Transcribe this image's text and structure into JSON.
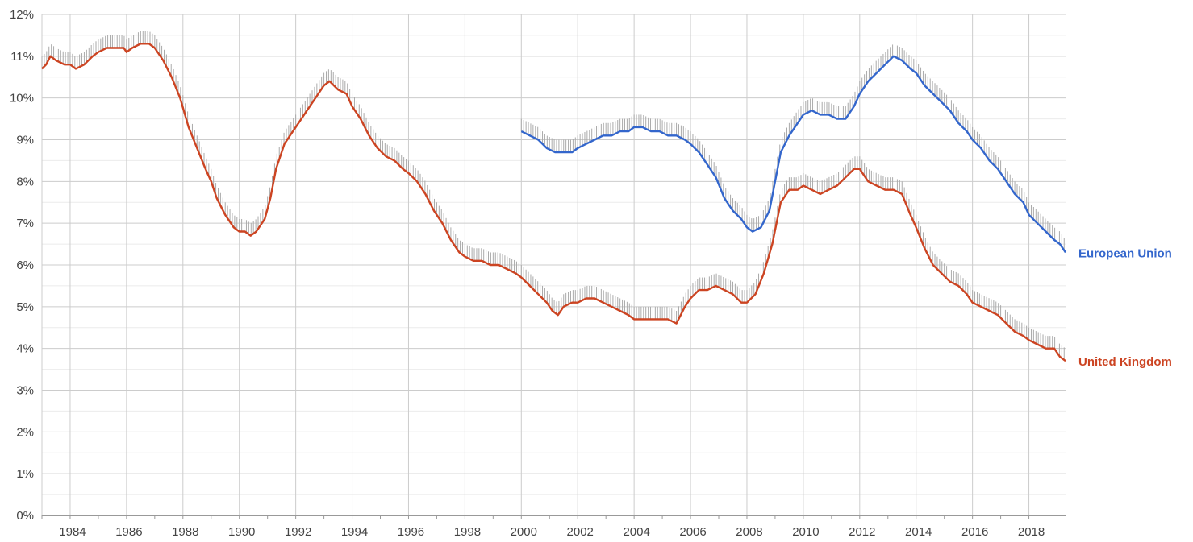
{
  "chart_data": {
    "type": "line",
    "title": "",
    "xlabel": "",
    "ylabel": "",
    "x_range": [
      1983.0,
      2019.3
    ],
    "ylim": [
      0,
      12
    ],
    "y_ticks": [
      "0%",
      "1%",
      "2%",
      "3%",
      "4%",
      "5%",
      "6%",
      "7%",
      "8%",
      "9%",
      "10%",
      "11%",
      "12%"
    ],
    "x_ticks": [
      "1984",
      "1986",
      "1988",
      "1990",
      "1992",
      "1994",
      "1996",
      "1998",
      "2000",
      "2002",
      "2004",
      "2006",
      "2008",
      "2010",
      "2012",
      "2014",
      "2016",
      "2018"
    ],
    "grid": true,
    "legend": "right, end of lines",
    "series": [
      {
        "name": "European Union",
        "color": "#3366cc",
        "points": [
          [
            2000.0,
            9.2
          ],
          [
            2000.3,
            9.1
          ],
          [
            2000.6,
            9.0
          ],
          [
            2000.9,
            8.8
          ],
          [
            2001.2,
            8.7
          ],
          [
            2001.5,
            8.7
          ],
          [
            2001.8,
            8.7
          ],
          [
            2002.0,
            8.8
          ],
          [
            2002.3,
            8.9
          ],
          [
            2002.6,
            9.0
          ],
          [
            2002.9,
            9.1
          ],
          [
            2003.2,
            9.1
          ],
          [
            2003.5,
            9.2
          ],
          [
            2003.8,
            9.2
          ],
          [
            2004.0,
            9.3
          ],
          [
            2004.3,
            9.3
          ],
          [
            2004.6,
            9.2
          ],
          [
            2004.9,
            9.2
          ],
          [
            2005.2,
            9.1
          ],
          [
            2005.5,
            9.1
          ],
          [
            2005.8,
            9.0
          ],
          [
            2006.0,
            8.9
          ],
          [
            2006.3,
            8.7
          ],
          [
            2006.6,
            8.4
          ],
          [
            2006.9,
            8.1
          ],
          [
            2007.2,
            7.6
          ],
          [
            2007.5,
            7.3
          ],
          [
            2007.8,
            7.1
          ],
          [
            2008.0,
            6.9
          ],
          [
            2008.2,
            6.8
          ],
          [
            2008.5,
            6.9
          ],
          [
            2008.8,
            7.3
          ],
          [
            2009.0,
            8.0
          ],
          [
            2009.2,
            8.7
          ],
          [
            2009.5,
            9.1
          ],
          [
            2009.8,
            9.4
          ],
          [
            2010.0,
            9.6
          ],
          [
            2010.3,
            9.7
          ],
          [
            2010.6,
            9.6
          ],
          [
            2010.9,
            9.6
          ],
          [
            2011.2,
            9.5
          ],
          [
            2011.5,
            9.5
          ],
          [
            2011.8,
            9.8
          ],
          [
            2012.0,
            10.1
          ],
          [
            2012.3,
            10.4
          ],
          [
            2012.6,
            10.6
          ],
          [
            2012.9,
            10.8
          ],
          [
            2013.2,
            11.0
          ],
          [
            2013.5,
            10.9
          ],
          [
            2013.8,
            10.7
          ],
          [
            2014.0,
            10.6
          ],
          [
            2014.3,
            10.3
          ],
          [
            2014.6,
            10.1
          ],
          [
            2014.9,
            9.9
          ],
          [
            2015.2,
            9.7
          ],
          [
            2015.5,
            9.4
          ],
          [
            2015.8,
            9.2
          ],
          [
            2016.0,
            9.0
          ],
          [
            2016.3,
            8.8
          ],
          [
            2016.6,
            8.5
          ],
          [
            2016.9,
            8.3
          ],
          [
            2017.2,
            8.0
          ],
          [
            2017.5,
            7.7
          ],
          [
            2017.8,
            7.5
          ],
          [
            2018.0,
            7.2
          ],
          [
            2018.3,
            7.0
          ],
          [
            2018.6,
            6.8
          ],
          [
            2018.9,
            6.6
          ],
          [
            2019.1,
            6.5
          ],
          [
            2019.3,
            6.3
          ]
        ]
      },
      {
        "name": "United Kingdom",
        "color": "#cc4422",
        "points": [
          [
            1983.0,
            10.7
          ],
          [
            1983.15,
            10.8
          ],
          [
            1983.3,
            11.0
          ],
          [
            1983.5,
            10.9
          ],
          [
            1983.8,
            10.8
          ],
          [
            1984.0,
            10.8
          ],
          [
            1984.2,
            10.7
          ],
          [
            1984.5,
            10.8
          ],
          [
            1984.8,
            11.0
          ],
          [
            1985.0,
            11.1
          ],
          [
            1985.3,
            11.2
          ],
          [
            1985.6,
            11.2
          ],
          [
            1985.9,
            11.2
          ],
          [
            1986.0,
            11.1
          ],
          [
            1986.2,
            11.2
          ],
          [
            1986.5,
            11.3
          ],
          [
            1986.8,
            11.3
          ],
          [
            1987.0,
            11.2
          ],
          [
            1987.3,
            10.9
          ],
          [
            1987.6,
            10.5
          ],
          [
            1987.9,
            10.0
          ],
          [
            1988.2,
            9.3
          ],
          [
            1988.5,
            8.8
          ],
          [
            1988.8,
            8.3
          ],
          [
            1989.0,
            8.0
          ],
          [
            1989.2,
            7.6
          ],
          [
            1989.5,
            7.2
          ],
          [
            1989.8,
            6.9
          ],
          [
            1990.0,
            6.8
          ],
          [
            1990.2,
            6.8
          ],
          [
            1990.4,
            6.7
          ],
          [
            1990.6,
            6.8
          ],
          [
            1990.9,
            7.1
          ],
          [
            1991.1,
            7.6
          ],
          [
            1991.3,
            8.3
          ],
          [
            1991.6,
            8.9
          ],
          [
            1991.9,
            9.2
          ],
          [
            1992.1,
            9.4
          ],
          [
            1992.4,
            9.7
          ],
          [
            1992.7,
            10.0
          ],
          [
            1993.0,
            10.3
          ],
          [
            1993.2,
            10.4
          ],
          [
            1993.5,
            10.2
          ],
          [
            1993.8,
            10.1
          ],
          [
            1994.0,
            9.8
          ],
          [
            1994.3,
            9.5
          ],
          [
            1994.6,
            9.1
          ],
          [
            1994.9,
            8.8
          ],
          [
            1995.2,
            8.6
          ],
          [
            1995.5,
            8.5
          ],
          [
            1995.8,
            8.3
          ],
          [
            1996.0,
            8.2
          ],
          [
            1996.3,
            8.0
          ],
          [
            1996.6,
            7.7
          ],
          [
            1996.9,
            7.3
          ],
          [
            1997.2,
            7.0
          ],
          [
            1997.5,
            6.6
          ],
          [
            1997.8,
            6.3
          ],
          [
            1998.0,
            6.2
          ],
          [
            1998.3,
            6.1
          ],
          [
            1998.6,
            6.1
          ],
          [
            1998.9,
            6.0
          ],
          [
            1999.2,
            6.0
          ],
          [
            1999.5,
            5.9
          ],
          [
            1999.8,
            5.8
          ],
          [
            2000.0,
            5.7
          ],
          [
            2000.3,
            5.5
          ],
          [
            2000.6,
            5.3
          ],
          [
            2000.9,
            5.1
          ],
          [
            2001.1,
            4.9
          ],
          [
            2001.3,
            4.8
          ],
          [
            2001.5,
            5.0
          ],
          [
            2001.8,
            5.1
          ],
          [
            2002.0,
            5.1
          ],
          [
            2002.3,
            5.2
          ],
          [
            2002.6,
            5.2
          ],
          [
            2002.9,
            5.1
          ],
          [
            2003.2,
            5.0
          ],
          [
            2003.5,
            4.9
          ],
          [
            2003.8,
            4.8
          ],
          [
            2004.0,
            4.7
          ],
          [
            2004.3,
            4.7
          ],
          [
            2004.6,
            4.7
          ],
          [
            2004.9,
            4.7
          ],
          [
            2005.2,
            4.7
          ],
          [
            2005.5,
            4.6
          ],
          [
            2005.8,
            5.0
          ],
          [
            2006.0,
            5.2
          ],
          [
            2006.3,
            5.4
          ],
          [
            2006.6,
            5.4
          ],
          [
            2006.9,
            5.5
          ],
          [
            2007.2,
            5.4
          ],
          [
            2007.5,
            5.3
          ],
          [
            2007.8,
            5.1
          ],
          [
            2008.0,
            5.1
          ],
          [
            2008.3,
            5.3
          ],
          [
            2008.6,
            5.8
          ],
          [
            2008.9,
            6.5
          ],
          [
            2009.2,
            7.5
          ],
          [
            2009.5,
            7.8
          ],
          [
            2009.8,
            7.8
          ],
          [
            2010.0,
            7.9
          ],
          [
            2010.3,
            7.8
          ],
          [
            2010.6,
            7.7
          ],
          [
            2010.9,
            7.8
          ],
          [
            2011.2,
            7.9
          ],
          [
            2011.5,
            8.1
          ],
          [
            2011.8,
            8.3
          ],
          [
            2012.0,
            8.3
          ],
          [
            2012.3,
            8.0
          ],
          [
            2012.6,
            7.9
          ],
          [
            2012.9,
            7.8
          ],
          [
            2013.2,
            7.8
          ],
          [
            2013.5,
            7.7
          ],
          [
            2013.8,
            7.2
          ],
          [
            2014.0,
            6.9
          ],
          [
            2014.3,
            6.4
          ],
          [
            2014.6,
            6.0
          ],
          [
            2014.9,
            5.8
          ],
          [
            2015.2,
            5.6
          ],
          [
            2015.5,
            5.5
          ],
          [
            2015.8,
            5.3
          ],
          [
            2016.0,
            5.1
          ],
          [
            2016.3,
            5.0
          ],
          [
            2016.6,
            4.9
          ],
          [
            2016.9,
            4.8
          ],
          [
            2017.2,
            4.6
          ],
          [
            2017.5,
            4.4
          ],
          [
            2017.8,
            4.3
          ],
          [
            2018.0,
            4.2
          ],
          [
            2018.3,
            4.1
          ],
          [
            2018.6,
            4.0
          ],
          [
            2018.9,
            4.0
          ],
          [
            2019.1,
            3.8
          ],
          [
            2019.3,
            3.7
          ]
        ]
      }
    ]
  }
}
